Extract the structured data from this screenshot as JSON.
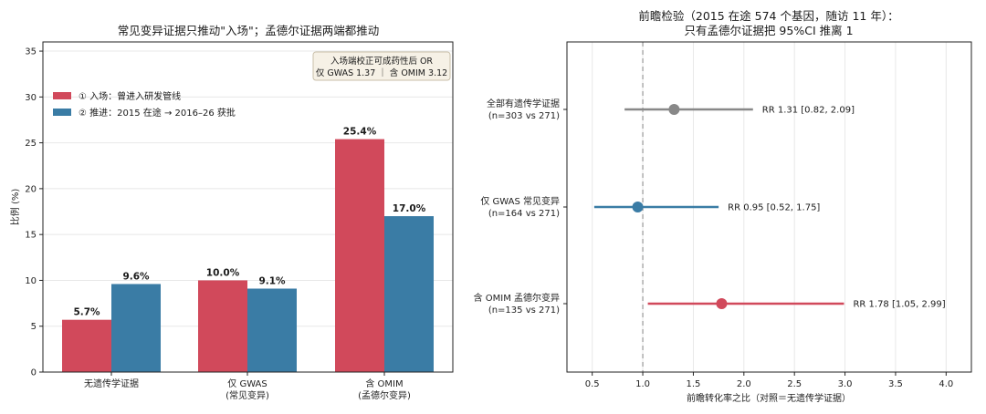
{
  "chart_data": [
    {
      "type": "bar",
      "title": "常见变异证据只推动\"入场\"；孟德尔证据两端都推动",
      "ylabel": "比例 (%)",
      "ylim": [
        0,
        36
      ],
      "yticks": [
        0,
        5,
        10,
        15,
        20,
        25,
        30,
        35
      ],
      "categories": [
        {
          "line1": "无遗传学证据",
          "line2": ""
        },
        {
          "line1": "仅 GWAS",
          "line2": "(常见变异)"
        },
        {
          "line1": "含 OMIM",
          "line2": "(孟德尔变异)"
        }
      ],
      "series": [
        {
          "name": "① 入场：曾进入研发管线",
          "color": "#d1495b",
          "values": [
            5.7,
            10.0,
            25.4
          ],
          "labels": [
            "5.7%",
            "10.0%",
            "25.4%"
          ]
        },
        {
          "name": "② 推进：2015 在途 → 2016–26 获批",
          "color": "#3a7ca5",
          "values": [
            9.6,
            9.1,
            17.0
          ],
          "labels": [
            "9.6%",
            "9.1%",
            "17.0%"
          ]
        }
      ],
      "legend": "upper-left",
      "grid": "y",
      "annotation": {
        "line1": "入场端校正可成药性后 OR",
        "line2": "仅 GWAS 1.37 ｜ 含 OMIM 3.12"
      }
    },
    {
      "type": "forest",
      "title_line1": "前瞻检验（2015 在途 574 个基因，随访 11 年）：",
      "title_line2": "只有孟德尔证据把 95%CI 推离 1",
      "xlabel": "前瞻转化率之比（对照＝无遗传学证据）",
      "xlim": [
        0.25,
        4.25
      ],
      "xticks": [
        0.5,
        1.0,
        1.5,
        2.0,
        2.5,
        3.0,
        3.5,
        4.0
      ],
      "xtick_labels": [
        "0.5",
        "1.0",
        "1.5",
        "2.0",
        "2.5",
        "3.0",
        "3.5",
        "4.0"
      ],
      "reference_line": 1.0,
      "grid": "x",
      "rows": [
        {
          "label1": "全部有遗传学证据",
          "label2": "(n=303 vs 271)",
          "rr": 1.31,
          "lo": 0.82,
          "hi": 2.09,
          "text": "RR 1.31  [0.82, 2.09]",
          "color": "#888888"
        },
        {
          "label1": "仅 GWAS 常见变异",
          "label2": "(n=164 vs 271)",
          "rr": 0.95,
          "lo": 0.52,
          "hi": 1.75,
          "text": "RR 0.95  [0.52, 1.75]",
          "color": "#3a7ca5"
        },
        {
          "label1": "含 OMIM 孟德尔变异",
          "label2": "(n=135 vs 271)",
          "rr": 1.78,
          "lo": 1.05,
          "hi": 2.99,
          "text": "RR 1.78  [1.05, 2.99]",
          "color": "#d1495b"
        }
      ]
    }
  ]
}
